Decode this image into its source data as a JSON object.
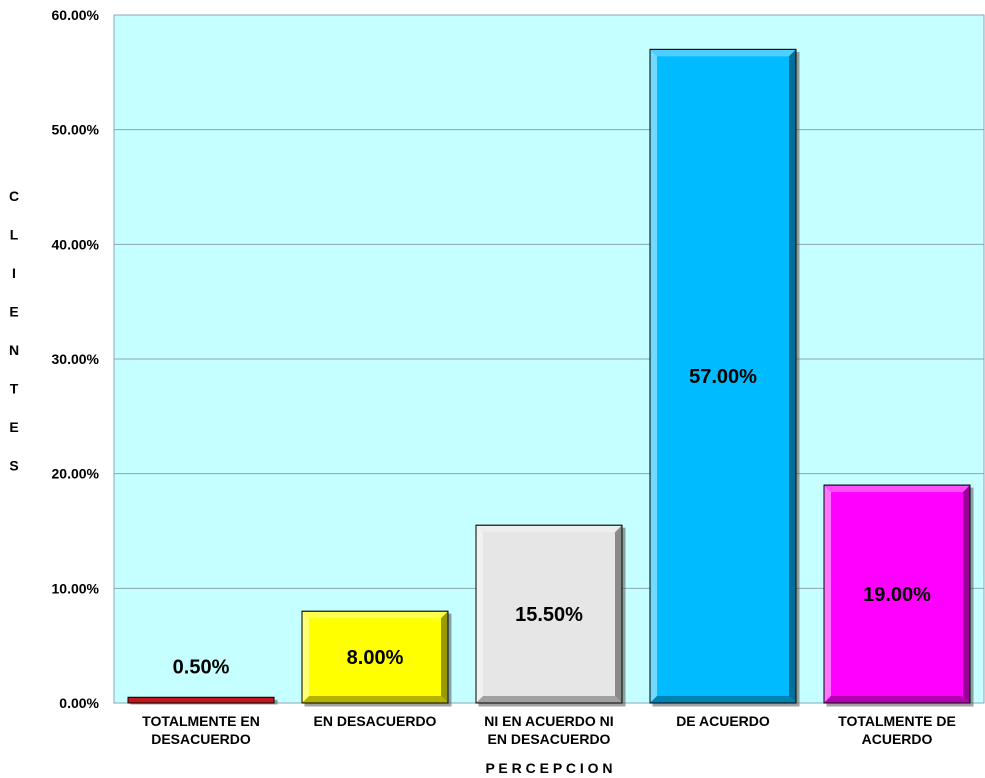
{
  "chart_data": {
    "type": "bar",
    "categories": [
      [
        "TOTALMENTE EN",
        "DESACUERDO"
      ],
      [
        "EN DESACUERDO"
      ],
      [
        "NI EN ACUERDO NI",
        "EN DESACUERDO"
      ],
      [
        "DE ACUERDO"
      ],
      [
        "TOTALMENTE DE",
        "ACUERDO"
      ]
    ],
    "values": [
      0.5,
      8.0,
      15.5,
      57.0,
      19.0
    ],
    "data_labels": [
      "0.50%",
      "8.00%",
      "15.50%",
      "57.00%",
      "19.00%"
    ],
    "colors": [
      "#c0141c",
      "#ffff00",
      "#e6e6e6",
      "#00bbff",
      "#ff00ff"
    ],
    "ylim": [
      0,
      60
    ],
    "yticks": [
      "0.00%",
      "10.00%",
      "20.00%",
      "30.00%",
      "40.00%",
      "50.00%",
      "60.00%"
    ],
    "xlabel": "P E R C E P C I O N",
    "ylabel_letters": [
      "C",
      "L",
      "I",
      "E",
      "N",
      "T",
      "E",
      "S"
    ],
    "plot_background": "#c6ffff",
    "grid": true,
    "legend": "none"
  }
}
